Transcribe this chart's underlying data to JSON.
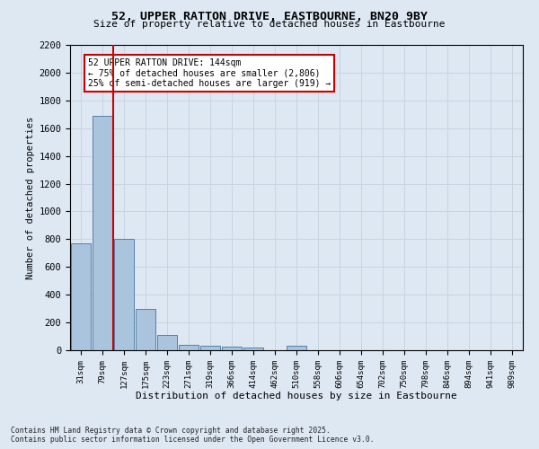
{
  "title": "52, UPPER RATTON DRIVE, EASTBOURNE, BN20 9BY",
  "subtitle": "Size of property relative to detached houses in Eastbourne",
  "xlabel": "Distribution of detached houses by size in Eastbourne",
  "ylabel": "Number of detached properties",
  "categories": [
    "31sqm",
    "79sqm",
    "127sqm",
    "175sqm",
    "223sqm",
    "271sqm",
    "319sqm",
    "366sqm",
    "414sqm",
    "462sqm",
    "510sqm",
    "558sqm",
    "606sqm",
    "654sqm",
    "702sqm",
    "750sqm",
    "798sqm",
    "846sqm",
    "894sqm",
    "941sqm",
    "989sqm"
  ],
  "values": [
    770,
    1690,
    800,
    300,
    110,
    38,
    30,
    25,
    20,
    0,
    30,
    0,
    0,
    0,
    0,
    0,
    0,
    0,
    0,
    0,
    0
  ],
  "bar_color": "#aac4de",
  "bar_edge_color": "#5580a8",
  "vline_x": 1.5,
  "vline_color": "#cc0000",
  "annotation_text": "52 UPPER RATTON DRIVE: 144sqm\n← 75% of detached houses are smaller (2,806)\n25% of semi-detached houses are larger (919) →",
  "annotation_box_color": "#ffffff",
  "annotation_box_edge": "#cc0000",
  "ylim": [
    0,
    2200
  ],
  "yticks": [
    0,
    200,
    400,
    600,
    800,
    1000,
    1200,
    1400,
    1600,
    1800,
    2000,
    2200
  ],
  "grid_color": "#c8d4e0",
  "background_color": "#dde8f3",
  "footer_line1": "Contains HM Land Registry data © Crown copyright and database right 2025.",
  "footer_line2": "Contains public sector information licensed under the Open Government Licence v3.0."
}
